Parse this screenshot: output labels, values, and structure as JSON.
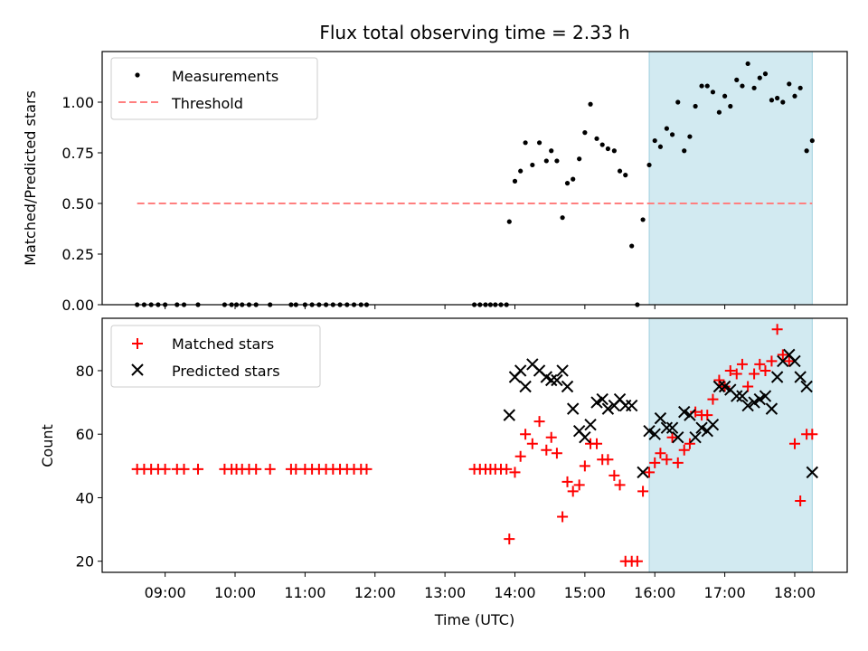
{
  "title": "Flux total observing time = 2.33 h",
  "colors": {
    "measure": "#000000",
    "threshold": "#ff7f7f",
    "matched": "#ff0000",
    "predicted": "#000000",
    "span": "#add8e6"
  },
  "chart_data": [
    {
      "type": "scatter",
      "panel": "top",
      "ylabel": "Matched/Predicted stars",
      "xlim": [
        8.1,
        18.75
      ],
      "ylim": [
        0,
        1.25
      ],
      "yticks": [
        0.0,
        0.25,
        0.5,
        0.75,
        1.0
      ],
      "ytick_labels": [
        "0.00",
        "0.25",
        "0.50",
        "0.75",
        "1.00"
      ],
      "shaded_span": [
        15.92,
        18.25
      ],
      "threshold": {
        "name": "Threshold",
        "y": 0.5,
        "x_range": [
          8.6,
          18.25
        ]
      },
      "legend": [
        "Measurements",
        "Threshold"
      ],
      "legend_position": "top-left",
      "series": [
        {
          "name": "Measurements",
          "x": [
            8.6,
            8.7,
            8.8,
            8.9,
            9.0,
            9.17,
            9.27,
            9.47,
            9.85,
            9.95,
            10.02,
            10.1,
            10.2,
            10.3,
            10.5,
            10.8,
            10.87,
            11.0,
            11.1,
            11.2,
            11.3,
            11.4,
            11.5,
            11.6,
            11.7,
            11.8,
            11.88,
            13.42,
            13.5,
            13.58,
            13.65,
            13.72,
            13.8,
            13.88,
            13.92,
            14.0,
            14.08,
            14.15,
            14.25,
            14.35,
            14.45,
            14.52,
            14.6,
            14.68,
            14.75,
            14.83,
            14.92,
            15.0,
            15.08,
            15.17,
            15.25,
            15.33,
            15.42,
            15.5,
            15.58,
            15.67,
            15.75,
            15.83,
            15.92,
            16.0,
            16.08,
            16.17,
            16.25,
            16.33,
            16.42,
            16.5,
            16.58,
            16.67,
            16.75,
            16.83,
            16.92,
            17.0,
            17.08,
            17.17,
            17.25,
            17.33,
            17.42,
            17.5,
            17.58,
            17.67,
            17.75,
            17.83,
            17.92,
            18.0,
            18.08,
            18.17,
            18.25
          ],
          "y": [
            0,
            0,
            0,
            0,
            0,
            0,
            0,
            0,
            0,
            0,
            0,
            0,
            0,
            0,
            0,
            0,
            0,
            0,
            0,
            0,
            0,
            0,
            0,
            0,
            0,
            0,
            0,
            0,
            0,
            0,
            0,
            0,
            0,
            0,
            0.41,
            0.61,
            0.66,
            0.8,
            0.69,
            0.8,
            0.71,
            0.76,
            0.71,
            0.43,
            0.6,
            0.62,
            0.72,
            0.85,
            0.99,
            0.82,
            0.79,
            0.77,
            0.76,
            0.66,
            0.64,
            0.29,
            0,
            0.42,
            0.69,
            0.81,
            0.78,
            0.87,
            0.84,
            1.0,
            0.76,
            0.83,
            0.98,
            1.08,
            1.08,
            1.05,
            0.95,
            1.03,
            0.98,
            1.11,
            1.08,
            1.19,
            1.07,
            1.12,
            1.14,
            1.01,
            1.02,
            1.0,
            1.09,
            1.03,
            1.07,
            0.76,
            0.81
          ]
        }
      ]
    },
    {
      "type": "scatter",
      "panel": "bottom",
      "xlabel": "Time (UTC)",
      "ylabel": "Count",
      "xlim": [
        8.1,
        18.75
      ],
      "ylim": [
        16.5,
        96.5
      ],
      "yticks": [
        20,
        40,
        60,
        80
      ],
      "xticks": [
        9,
        10,
        11,
        12,
        13,
        14,
        15,
        16,
        17,
        18
      ],
      "xtick_labels": [
        "09:00",
        "10:00",
        "11:00",
        "12:00",
        "13:00",
        "14:00",
        "15:00",
        "16:00",
        "17:00",
        "18:00"
      ],
      "shaded_span": [
        15.92,
        18.25
      ],
      "legend": [
        "Matched stars",
        "Predicted stars"
      ],
      "legend_position": "top-left",
      "series": [
        {
          "name": "Matched stars",
          "x": [
            8.6,
            8.7,
            8.8,
            8.9,
            9.0,
            9.17,
            9.27,
            9.47,
            9.85,
            9.95,
            10.02,
            10.1,
            10.2,
            10.3,
            10.5,
            10.8,
            10.87,
            11.0,
            11.1,
            11.2,
            11.3,
            11.4,
            11.5,
            11.6,
            11.7,
            11.8,
            11.88,
            13.42,
            13.5,
            13.58,
            13.65,
            13.72,
            13.8,
            13.88,
            13.92,
            14.0,
            14.08,
            14.15,
            14.25,
            14.35,
            14.45,
            14.52,
            14.6,
            14.68,
            14.75,
            14.83,
            14.92,
            15.0,
            15.08,
            15.17,
            15.25,
            15.33,
            15.42,
            15.5,
            15.58,
            15.67,
            15.75,
            15.83,
            15.92,
            16.0,
            16.08,
            16.17,
            16.25,
            16.33,
            16.42,
            16.5,
            16.58,
            16.67,
            16.75,
            16.83,
            16.92,
            17.0,
            17.08,
            17.17,
            17.25,
            17.33,
            17.42,
            17.5,
            17.58,
            17.67,
            17.75,
            17.83,
            17.92,
            18.0,
            18.08,
            18.17,
            18.25
          ],
          "y": [
            49,
            49,
            49,
            49,
            49,
            49,
            49,
            49,
            49,
            49,
            49,
            49,
            49,
            49,
            49,
            49,
            49,
            49,
            49,
            49,
            49,
            49,
            49,
            49,
            49,
            49,
            49,
            49,
            49,
            49,
            49,
            49,
            49,
            49,
            27,
            48,
            53,
            60,
            57,
            64,
            55,
            59,
            54,
            34,
            45,
            42,
            44,
            50,
            57,
            57,
            52,
            52,
            47,
            44,
            20,
            20,
            20,
            42,
            48,
            51,
            54,
            52,
            59,
            51,
            55,
            57,
            67,
            66,
            66,
            71,
            77,
            75,
            80,
            79,
            82,
            75,
            79,
            82,
            80,
            83,
            93,
            85,
            83,
            57,
            39,
            60,
            60
          ],
          "note_drop_last_two": false
        },
        {
          "name": "Predicted stars",
          "x": [
            13.92,
            14.0,
            14.08,
            14.15,
            14.25,
            14.35,
            14.45,
            14.52,
            14.6,
            14.68,
            14.75,
            14.83,
            14.92,
            15.0,
            15.08,
            15.17,
            15.25,
            15.33,
            15.42,
            15.5,
            15.58,
            15.67,
            15.83,
            15.92,
            16.0,
            16.08,
            16.17,
            16.25,
            16.33,
            16.42,
            16.5,
            16.58,
            16.67,
            16.75,
            16.83,
            16.92,
            17.0,
            17.08,
            17.17,
            17.25,
            17.33,
            17.42,
            17.5,
            17.58,
            17.67,
            17.75,
            17.83,
            17.92,
            18.0,
            18.08,
            18.17,
            18.25
          ],
          "y": [
            66,
            78,
            80,
            75,
            82,
            80,
            78,
            77,
            77,
            80,
            75,
            68,
            61,
            59,
            63,
            70,
            71,
            68,
            69,
            71,
            69,
            69,
            48,
            61,
            60,
            65,
            62,
            62,
            59,
            67,
            66,
            59,
            62,
            61,
            63,
            75,
            75,
            74,
            72,
            72,
            69,
            70,
            71,
            72,
            68,
            78,
            83,
            85,
            83,
            78,
            75,
            48
          ]
        }
      ]
    }
  ]
}
